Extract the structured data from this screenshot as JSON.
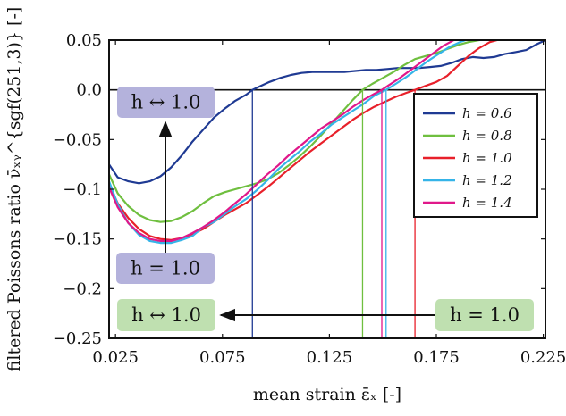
{
  "chart_data": {
    "type": "line",
    "xlabel": "mean strain ε̄ₓ [-]",
    "ylabel": "filtered Poissons ratio ν̄ₓᵧ^{sgf(251,3)} [-]",
    "xlim": [
      0.022,
      0.226
    ],
    "ylim": [
      -0.25,
      0.05
    ],
    "xticks": [
      0.025,
      0.075,
      0.125,
      0.175,
      0.225
    ],
    "xtick_labels": [
      "0.025",
      "0.075",
      "0.125",
      "0.175",
      "0.225"
    ],
    "yticks": [
      0.05,
      0.0,
      -0.05,
      -0.1,
      -0.15,
      -0.2,
      -0.25
    ],
    "ytick_labels": [
      "0.05",
      "0.0",
      "−0.05",
      "−0.1",
      "−0.15",
      "−0.2",
      "−0.25"
    ],
    "zero_line": 0.0,
    "legend_position": "right",
    "series": [
      {
        "name": "h = 0.6",
        "color": "#1f3a93",
        "x": [
          0.022,
          0.026,
          0.031,
          0.036,
          0.041,
          0.046,
          0.051,
          0.056,
          0.061,
          0.066,
          0.071,
          0.076,
          0.081,
          0.086,
          0.089,
          0.092,
          0.097,
          0.102,
          0.107,
          0.112,
          0.117,
          0.122,
          0.127,
          0.132,
          0.137,
          0.142,
          0.147,
          0.152,
          0.157,
          0.162,
          0.167,
          0.172,
          0.177,
          0.182,
          0.187,
          0.192,
          0.197,
          0.202,
          0.207,
          0.212,
          0.217,
          0.222,
          0.226
        ],
        "y": [
          -0.075,
          -0.088,
          -0.092,
          -0.094,
          -0.092,
          -0.087,
          -0.078,
          -0.066,
          -0.052,
          -0.04,
          -0.028,
          -0.019,
          -0.011,
          -0.005,
          0.0,
          0.003,
          0.008,
          0.012,
          0.015,
          0.017,
          0.018,
          0.018,
          0.018,
          0.018,
          0.019,
          0.02,
          0.02,
          0.021,
          0.022,
          0.022,
          0.022,
          0.023,
          0.024,
          0.027,
          0.031,
          0.033,
          0.032,
          0.033,
          0.036,
          0.038,
          0.04,
          0.046,
          0.05
        ]
      },
      {
        "name": "h = 0.8",
        "color": "#6fbf3f",
        "x": [
          0.022,
          0.026,
          0.031,
          0.036,
          0.041,
          0.046,
          0.051,
          0.056,
          0.061,
          0.066,
          0.071,
          0.076,
          0.081,
          0.086,
          0.091,
          0.096,
          0.101,
          0.106,
          0.111,
          0.116,
          0.121,
          0.126,
          0.131,
          0.136,
          0.1405,
          0.145,
          0.15,
          0.155,
          0.16,
          0.165,
          0.17,
          0.175,
          0.18,
          0.185,
          0.19,
          0.195,
          0.2
        ],
        "y": [
          -0.085,
          -0.104,
          -0.117,
          -0.126,
          -0.131,
          -0.133,
          -0.132,
          -0.128,
          -0.122,
          -0.114,
          -0.107,
          -0.103,
          -0.1,
          -0.097,
          -0.094,
          -0.09,
          -0.084,
          -0.076,
          -0.067,
          -0.057,
          -0.046,
          -0.034,
          -0.022,
          -0.01,
          0.0,
          0.006,
          0.012,
          0.018,
          0.025,
          0.031,
          0.034,
          0.037,
          0.041,
          0.045,
          0.048,
          0.05,
          0.051
        ]
      },
      {
        "name": "h = 1.0",
        "color": "#e8202a",
        "x": [
          0.022,
          0.026,
          0.031,
          0.036,
          0.041,
          0.046,
          0.051,
          0.056,
          0.061,
          0.066,
          0.071,
          0.076,
          0.081,
          0.086,
          0.091,
          0.096,
          0.101,
          0.106,
          0.111,
          0.116,
          0.121,
          0.126,
          0.131,
          0.136,
          0.141,
          0.146,
          0.151,
          0.156,
          0.161,
          0.165,
          0.17,
          0.175,
          0.18,
          0.185,
          0.19,
          0.195,
          0.2,
          0.205
        ],
        "y": [
          -0.095,
          -0.114,
          -0.129,
          -0.14,
          -0.147,
          -0.15,
          -0.151,
          -0.149,
          -0.145,
          -0.14,
          -0.133,
          -0.126,
          -0.12,
          -0.114,
          -0.106,
          -0.098,
          -0.089,
          -0.08,
          -0.071,
          -0.062,
          -0.054,
          -0.046,
          -0.038,
          -0.03,
          -0.023,
          -0.017,
          -0.012,
          -0.007,
          -0.003,
          0.0,
          0.004,
          0.008,
          0.014,
          0.024,
          0.034,
          0.042,
          0.048,
          0.051
        ]
      },
      {
        "name": "h = 1.2",
        "color": "#35b4e8",
        "x": [
          0.022,
          0.026,
          0.031,
          0.036,
          0.041,
          0.046,
          0.051,
          0.056,
          0.061,
          0.066,
          0.071,
          0.076,
          0.081,
          0.086,
          0.091,
          0.096,
          0.101,
          0.106,
          0.111,
          0.116,
          0.121,
          0.126,
          0.131,
          0.136,
          0.141,
          0.146,
          0.1515,
          0.156,
          0.161,
          0.166,
          0.171,
          0.176,
          0.181,
          0.186,
          0.19
        ],
        "y": [
          -0.092,
          -0.115,
          -0.134,
          -0.146,
          -0.152,
          -0.154,
          -0.154,
          -0.151,
          -0.147,
          -0.138,
          -0.133,
          -0.125,
          -0.117,
          -0.11,
          -0.101,
          -0.091,
          -0.08,
          -0.071,
          -0.062,
          -0.052,
          -0.044,
          -0.035,
          -0.028,
          -0.021,
          -0.014,
          -0.006,
          0.0,
          0.006,
          0.013,
          0.021,
          0.029,
          0.036,
          0.043,
          0.048,
          0.051
        ]
      },
      {
        "name": "h = 1.4",
        "color": "#e0188a",
        "x": [
          0.022,
          0.026,
          0.031,
          0.036,
          0.041,
          0.046,
          0.051,
          0.056,
          0.061,
          0.066,
          0.071,
          0.076,
          0.081,
          0.086,
          0.091,
          0.096,
          0.101,
          0.106,
          0.111,
          0.116,
          0.121,
          0.126,
          0.131,
          0.136,
          0.141,
          0.146,
          0.1495,
          0.153,
          0.158,
          0.163,
          0.168,
          0.173,
          0.178,
          0.184
        ],
        "y": [
          -0.098,
          -0.118,
          -0.134,
          -0.144,
          -0.15,
          -0.152,
          -0.152,
          -0.149,
          -0.144,
          -0.138,
          -0.131,
          -0.123,
          -0.114,
          -0.105,
          -0.095,
          -0.085,
          -0.076,
          -0.066,
          -0.057,
          -0.048,
          -0.039,
          -0.032,
          -0.025,
          -0.017,
          -0.01,
          -0.004,
          0.0,
          0.005,
          0.012,
          0.02,
          0.028,
          0.036,
          0.044,
          0.051
        ]
      }
    ],
    "zero_crossings": [
      {
        "series": "h = 0.6",
        "x": 0.089,
        "color": "#1f3a93"
      },
      {
        "series": "h = 0.8",
        "x": 0.1405,
        "color": "#6fbf3f"
      },
      {
        "series": "h = 1.4",
        "x": 0.1495,
        "color": "#e0188a"
      },
      {
        "series": "h = 1.2",
        "x": 0.1515,
        "color": "#35b4e8"
      },
      {
        "series": "h = 1.0",
        "x": 0.165,
        "color": "#e8202a"
      }
    ],
    "annotations": [
      {
        "text": "h ↔ 1.0",
        "box_color": "#b4b2dc",
        "anchor": "upper-left"
      },
      {
        "text": "h = 1.0",
        "box_color": "#b4b2dc",
        "anchor": "lower-left"
      },
      {
        "text": "h ↔ 1.0",
        "box_color": "#bfe0b0",
        "anchor": "bottom-left"
      },
      {
        "text": "h = 1.0",
        "box_color": "#bfe0b0",
        "anchor": "bottom-right"
      }
    ]
  }
}
